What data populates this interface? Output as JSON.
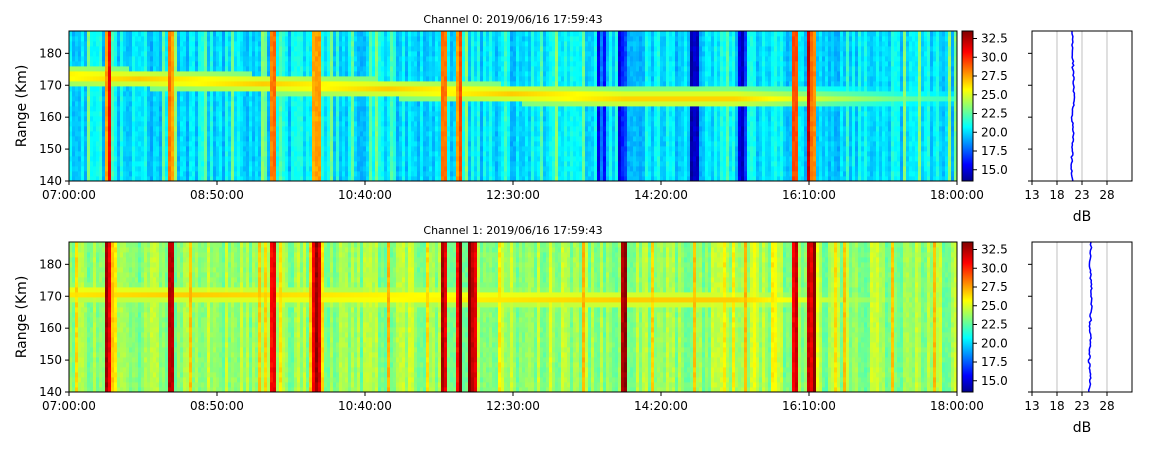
{
  "chart_data": [
    {
      "type": "heatmap",
      "title": "Channel 0: 2019/06/16 17:59:43",
      "ylabel": "Range (Km)",
      "xlim": [
        "07:00:00",
        "18:00:00"
      ],
      "ylim": [
        140,
        187
      ],
      "x_ticks": [
        "07:00:00",
        "08:50:00",
        "10:40:00",
        "12:30:00",
        "14:20:00",
        "16:10:00",
        "18:00:00"
      ],
      "y_ticks": [
        "140",
        "150",
        "160",
        "170",
        "180"
      ],
      "baseline_db": 20.5,
      "echo_band": {
        "start_range": 173,
        "end_range": 166,
        "peak_db": 27
      },
      "strong_columns": [
        "07:29:00",
        "08:15:00",
        "09:32:00",
        "10:04:00",
        "11:38:00",
        "11:50:00",
        "16:00:00",
        "16:12:00"
      ],
      "weak_columns": [
        "13:35:00",
        "13:52:00",
        "14:45:00",
        "15:20:00"
      ],
      "colorbar": {
        "colormap": "jet",
        "min": 13.5,
        "max": 33.5,
        "ticks": [
          "15.0",
          "17.5",
          "20.0",
          "22.5",
          "25.0",
          "27.5",
          "30.0",
          "32.5"
        ]
      }
    },
    {
      "type": "line",
      "xlabel": "dB",
      "xlim": [
        13,
        33
      ],
      "ylim": [
        140,
        187
      ],
      "x_ticks": [
        "13",
        "18",
        "23",
        "28"
      ],
      "grid": true,
      "series": [
        {
          "x": [
            21.0,
            20.9,
            21.1,
            21.2,
            21.0,
            21.3,
            21.4,
            21.2,
            21.1,
            21.0
          ],
          "y": [
            140,
            145,
            150,
            155,
            160,
            165,
            170,
            175,
            180,
            187
          ]
        }
      ],
      "color": "#0000ff"
    },
    {
      "type": "heatmap",
      "title": "Channel 1: 2019/06/16 17:59:43",
      "ylabel": "Range (Km)",
      "xlim": [
        "07:00:00",
        "18:00:00"
      ],
      "ylim": [
        140,
        187
      ],
      "x_ticks": [
        "07:00:00",
        "08:50:00",
        "10:40:00",
        "12:30:00",
        "14:20:00",
        "16:10:00",
        "18:00:00"
      ],
      "y_ticks": [
        "140",
        "150",
        "160",
        "170",
        "180"
      ],
      "baseline_db": 24,
      "echo_band": {
        "start_range": 171,
        "end_range": 169,
        "peak_db": 27
      },
      "strong_columns": [
        "07:29:00",
        "08:15:00",
        "09:32:00",
        "10:04:00",
        "11:38:00",
        "11:50:00",
        "12:00:00",
        "13:52:00",
        "16:00:00",
        "16:12:00"
      ],
      "weak_columns": [],
      "colorbar": {
        "colormap": "jet",
        "min": 13.5,
        "max": 33.5,
        "ticks": [
          "15.0",
          "17.5",
          "20.0",
          "22.5",
          "25.0",
          "27.5",
          "30.0",
          "32.5"
        ]
      }
    },
    {
      "type": "line",
      "xlabel": "dB",
      "xlim": [
        13,
        33
      ],
      "ylim": [
        140,
        187
      ],
      "x_ticks": [
        "13",
        "18",
        "23",
        "28"
      ],
      "grid": true,
      "series": [
        {
          "x": [
            24.5,
            24.6,
            24.4,
            24.7,
            24.6,
            24.8,
            24.9,
            24.7,
            24.6,
            24.8
          ],
          "y": [
            140,
            145,
            150,
            155,
            160,
            165,
            170,
            175,
            180,
            187
          ]
        }
      ],
      "color": "#0000ff"
    }
  ]
}
